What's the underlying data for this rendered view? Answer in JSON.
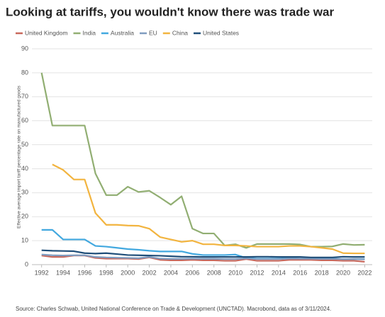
{
  "chart_data": {
    "type": "line",
    "title": "Looking at tariffs, you wouldn't know there was trade war",
    "y_label": "Effective average import tariff percentage rate on manufactured goods",
    "source": "Source: Charles Schwab, United National Conference on Trade & Development (UNCTAD). Macrobond, data as of 3/11/2024.",
    "x": [
      1992,
      1993,
      1994,
      1995,
      1996,
      1997,
      1998,
      1999,
      2000,
      2001,
      2002,
      2003,
      2004,
      2005,
      2006,
      2007,
      2008,
      2009,
      2010,
      2011,
      2012,
      2013,
      2014,
      2015,
      2016,
      2017,
      2018,
      2019,
      2020,
      2021,
      2022
    ],
    "xlim": [
      1991.1,
      2022.7
    ],
    "xticks": [
      1992,
      1994,
      1996,
      1998,
      2000,
      2002,
      2004,
      2006,
      2008,
      2010,
      2012,
      2014,
      2016,
      2018,
      2020,
      2022
    ],
    "ylim": [
      0,
      90
    ],
    "yticks": [
      0,
      10,
      20,
      30,
      40,
      50,
      60,
      70,
      80,
      90
    ],
    "grid": true,
    "series": [
      {
        "name": "United Kingdom",
        "color": "#c8685c",
        "values": [
          3.8,
          3.2,
          3.2,
          3.8,
          3.8,
          2.8,
          2.5,
          2.5,
          2.5,
          2.3,
          3,
          2,
          1.8,
          1.8,
          2,
          1.8,
          1.8,
          1.6,
          1.6,
          2.3,
          1.6,
          1.6,
          1.6,
          2,
          2,
          2,
          1.8,
          1.8,
          1.6,
          1.6,
          1.2
        ]
      },
      {
        "name": "India",
        "color": "#91ae72",
        "values": [
          80,
          58,
          58,
          58,
          58,
          38,
          29,
          29,
          32.5,
          30.3,
          30.8,
          28,
          25,
          28.5,
          15,
          13,
          13,
          8,
          8.5,
          7,
          8.6,
          8.6,
          8.6,
          8.6,
          8.4,
          7.5,
          7.5,
          7.6,
          8.6,
          8.2,
          8.3
        ]
      },
      {
        "name": "Australia",
        "color": "#42a8df",
        "values": [
          14.5,
          14.5,
          10.5,
          10.5,
          10.5,
          7.8,
          7.5,
          7,
          6.5,
          6.2,
          5.8,
          5.5,
          5.5,
          5.5,
          4.5,
          4,
          4,
          4,
          4.2,
          2.8,
          2.5,
          2.5,
          2.5,
          2.8,
          2.5,
          2.5,
          2.5,
          2.5,
          2.3,
          2.3,
          2.3
        ]
      },
      {
        "name": "EU",
        "color": "#7f9cc0",
        "values": [
          4.2,
          3.9,
          3.8,
          3.9,
          3.9,
          3.2,
          3,
          2.9,
          2.8,
          2.7,
          3.2,
          2.5,
          2.4,
          2.4,
          2.5,
          2.4,
          2.4,
          2.3,
          2.3,
          2.6,
          2.3,
          2.3,
          2.3,
          2.5,
          2.5,
          2.5,
          2.4,
          2.4,
          2.3,
          2.3,
          2.2
        ]
      },
      {
        "name": "China",
        "color": "#f2b43f",
        "values": [
          null,
          41.8,
          39.5,
          35.5,
          35.5,
          21.5,
          16.6,
          16.6,
          16.3,
          16.2,
          15,
          11.5,
          10.5,
          9.5,
          10,
          8.5,
          8.5,
          8,
          8,
          7.8,
          7.5,
          7.5,
          7.5,
          7.8,
          7.8,
          7.5,
          7,
          6.5,
          4.8,
          4.7,
          4.7
        ]
      },
      {
        "name": "United States",
        "color": "#1f4e79",
        "values": [
          6,
          5.8,
          5.7,
          5.6,
          4.8,
          4.6,
          4.8,
          4.4,
          4,
          3.9,
          3.8,
          3.7,
          3.5,
          3.3,
          3.3,
          3.2,
          3.2,
          3.2,
          3.2,
          3.2,
          3.3,
          3.3,
          3.2,
          3.2,
          3.2,
          3,
          3,
          3,
          3.3,
          3.2,
          3.2
        ]
      }
    ]
  }
}
